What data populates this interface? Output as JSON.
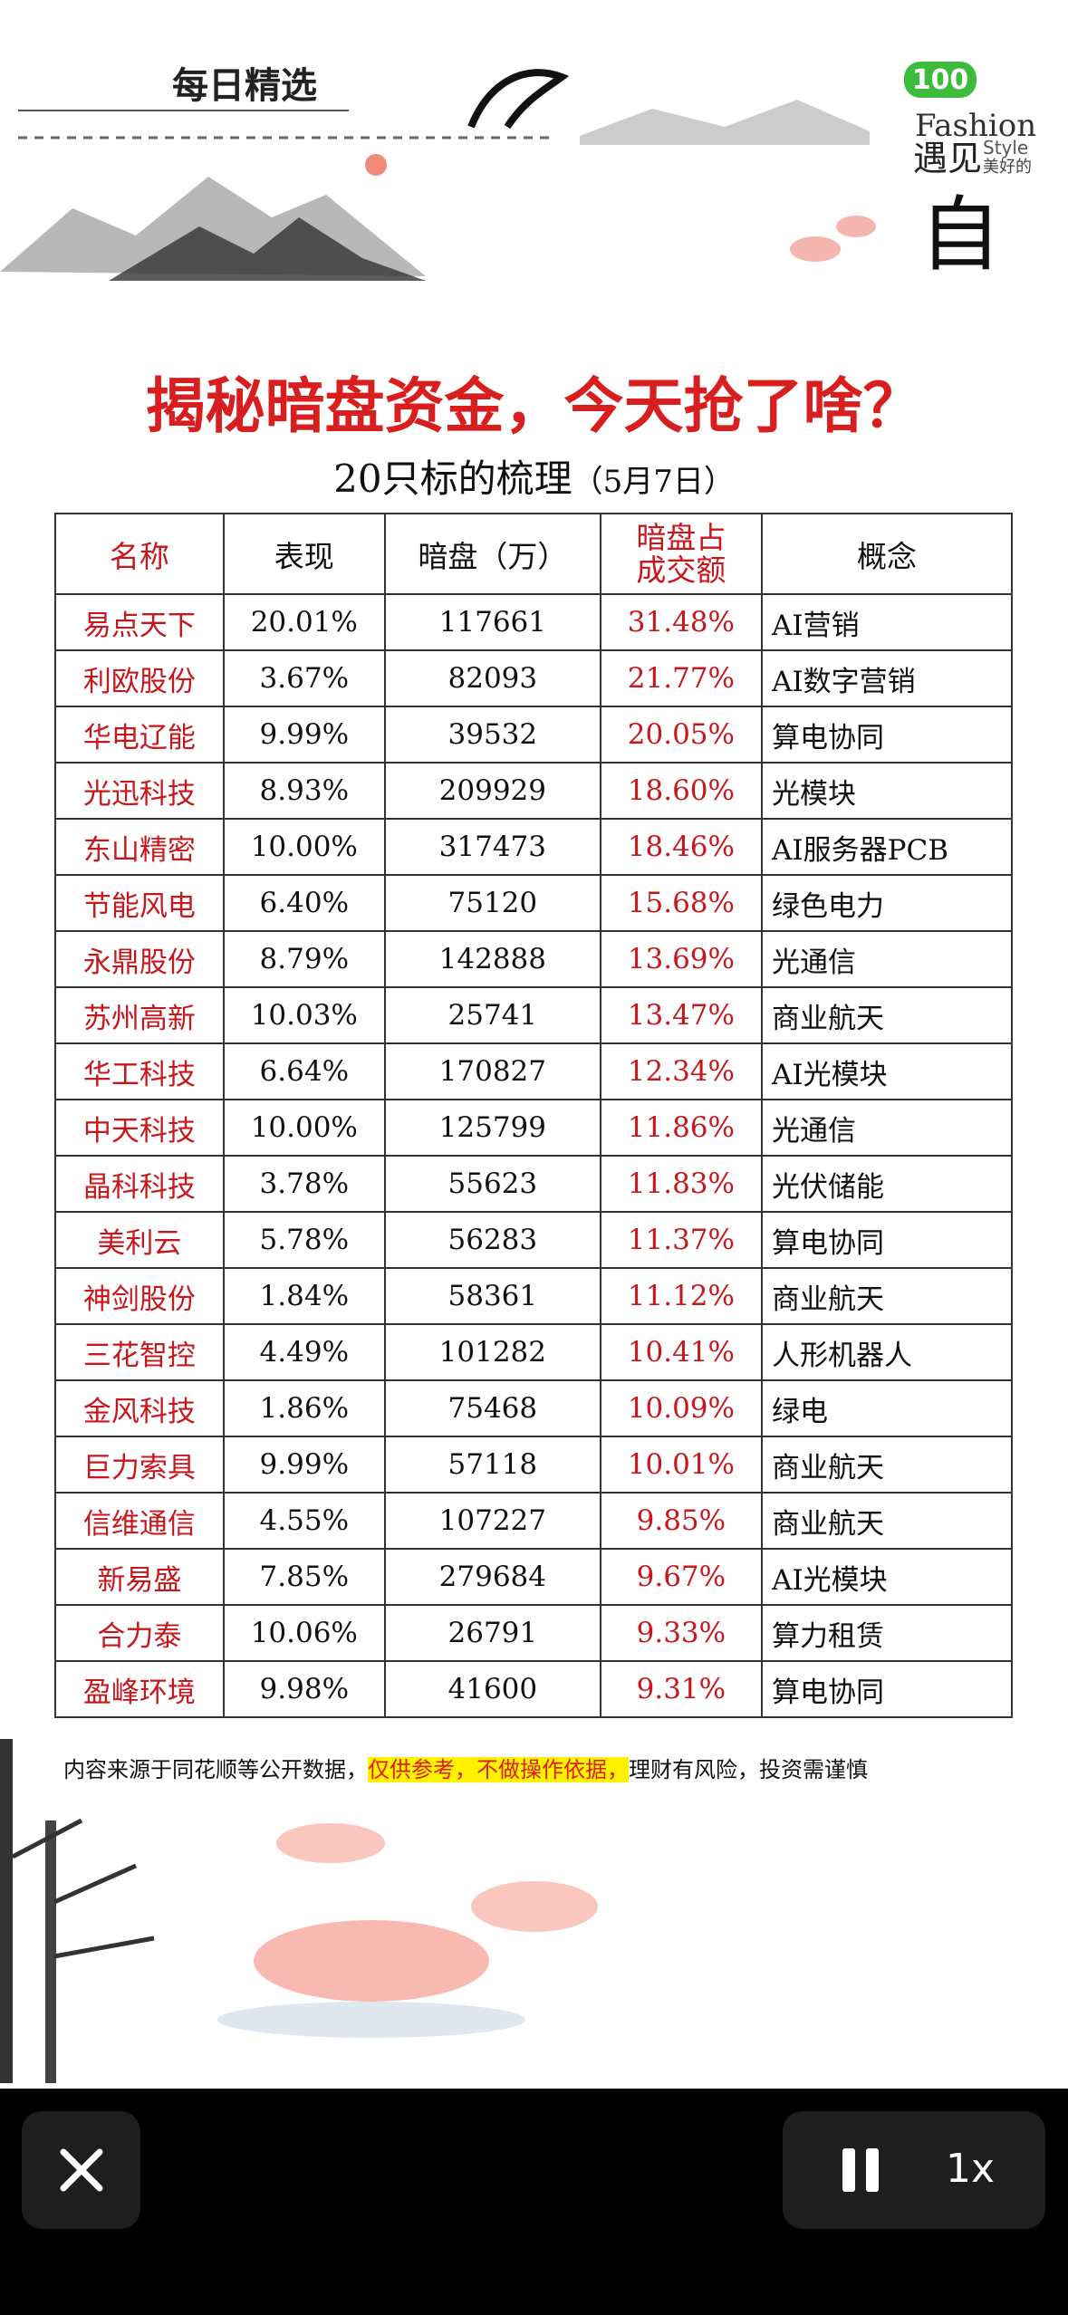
{
  "header": {
    "banner": "每日精选",
    "badge": "100",
    "brand": "Fashion",
    "slogan": "遇见",
    "slogan_small": "Style",
    "slogan_tail": "美好的",
    "slogan_big": "自"
  },
  "title": "揭秘暗盘资金，今天抢了啥？",
  "subtitle": "20只标的梳理",
  "date": "（5月7日）",
  "table": {
    "columns": [
      "名称",
      "表现",
      "暗盘（万）",
      "暗盘占\n成交额",
      "概念"
    ],
    "rows": [
      [
        "易点天下",
        "20.01%",
        "117661",
        "31.48%",
        "AI营销"
      ],
      [
        "利欧股份",
        "3.67%",
        "82093",
        "21.77%",
        "AI数字营销"
      ],
      [
        "华电辽能",
        "9.99%",
        "39532",
        "20.05%",
        "算电协同"
      ],
      [
        "光迅科技",
        "8.93%",
        "209929",
        "18.60%",
        "光模块"
      ],
      [
        "东山精密",
        "10.00%",
        "317473",
        "18.46%",
        "AI服务器PCB"
      ],
      [
        "节能风电",
        "6.40%",
        "75120",
        "15.68%",
        "绿色电力"
      ],
      [
        "永鼎股份",
        "8.79%",
        "142888",
        "13.69%",
        "光通信"
      ],
      [
        "苏州高新",
        "10.03%",
        "25741",
        "13.47%",
        "商业航天"
      ],
      [
        "华工科技",
        "6.64%",
        "170827",
        "12.34%",
        "AI光模块"
      ],
      [
        "中天科技",
        "10.00%",
        "125799",
        "11.86%",
        "光通信"
      ],
      [
        "晶科科技",
        "3.78%",
        "55623",
        "11.83%",
        "光伏储能"
      ],
      [
        "美利云",
        "5.78%",
        "56283",
        "11.37%",
        "算电协同"
      ],
      [
        "神剑股份",
        "1.84%",
        "58361",
        "11.12%",
        "商业航天"
      ],
      [
        "三花智控",
        "4.49%",
        "101282",
        "10.41%",
        "人形机器人"
      ],
      [
        "金风科技",
        "1.86%",
        "75468",
        "10.09%",
        "绿电"
      ],
      [
        "巨力索具",
        "9.99%",
        "57118",
        "10.01%",
        "商业航天"
      ],
      [
        "信维通信",
        "4.55%",
        "107227",
        "9.85%",
        "商业航天"
      ],
      [
        "新易盛",
        "7.85%",
        "279684",
        "9.67%",
        "AI光模块"
      ],
      [
        "合力泰",
        "10.06%",
        "26791",
        "9.33%",
        "算力租赁"
      ],
      [
        "盈峰环境",
        "9.98%",
        "41600",
        "9.31%",
        "算电协同"
      ]
    ]
  },
  "footnote": {
    "before": "内容来源于同花顺等公开数据，",
    "highlight": "仅供参考，不做操作依据，",
    "after": "理财有风险，投资需谨慎"
  },
  "controls": {
    "speed": "1x"
  }
}
